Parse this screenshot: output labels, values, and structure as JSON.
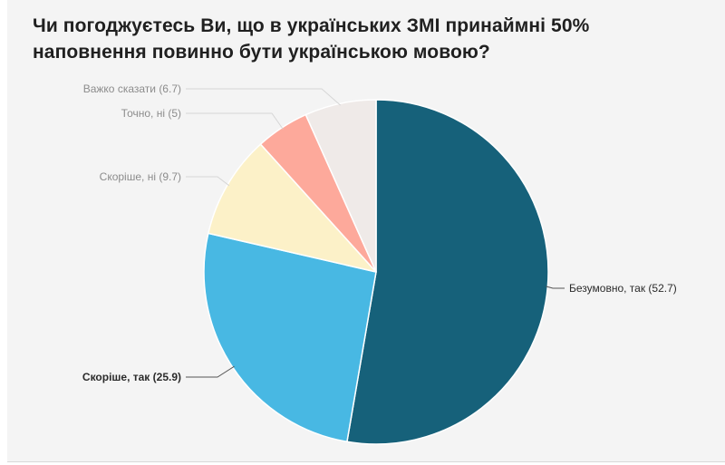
{
  "chart_data": {
    "type": "pie",
    "title": "Чи погоджуєтесь Ви, що в українських ЗМІ принаймні 50% наповнення повинно бути українською мовою?",
    "slices": [
      {
        "label": "Безумовно, так",
        "value": 52.7,
        "color": "#16617a",
        "label_color": "#2b2b2b"
      },
      {
        "label": "Скоріше, так",
        "value": 25.9,
        "color": "#48b8e3",
        "label_color": "#2b2b2b"
      },
      {
        "label": "Скоріше, ні",
        "value": 9.7,
        "color": "#fcf1c8",
        "label_color": "#8c8c8c"
      },
      {
        "label": "Точно, ні",
        "value": 5,
        "color": "#fda99b",
        "label_color": "#8c8c8c"
      },
      {
        "label": "Важко сказати",
        "value": 6.7,
        "color": "#efeae8",
        "label_color": "#8c8c8c"
      }
    ],
    "slice_labels": [
      "Безумовно, так (52.7)",
      "Скоріше, так (25.9)",
      "Скоріше, ні (9.7)",
      "Точно, ні (5)",
      "Важко сказати (6.7)"
    ]
  }
}
